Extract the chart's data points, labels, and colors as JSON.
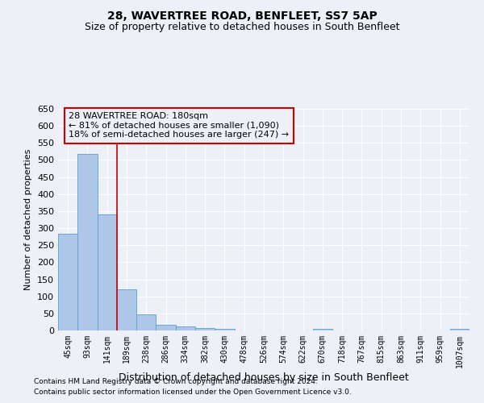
{
  "title": "28, WAVERTREE ROAD, BENFLEET, SS7 5AP",
  "subtitle": "Size of property relative to detached houses in South Benfleet",
  "xlabel": "Distribution of detached houses by size in South Benfleet",
  "ylabel": "Number of detached properties",
  "footnote1": "Contains HM Land Registry data © Crown copyright and database right 2024.",
  "footnote2": "Contains public sector information licensed under the Open Government Licence v3.0.",
  "categories": [
    "45sqm",
    "93sqm",
    "141sqm",
    "189sqm",
    "238sqm",
    "286sqm",
    "334sqm",
    "382sqm",
    "430sqm",
    "478sqm",
    "526sqm",
    "574sqm",
    "622sqm",
    "670sqm",
    "718sqm",
    "767sqm",
    "815sqm",
    "863sqm",
    "911sqm",
    "959sqm",
    "1007sqm"
  ],
  "values": [
    283,
    517,
    340,
    120,
    47,
    16,
    11,
    8,
    5,
    0,
    0,
    0,
    0,
    5,
    0,
    0,
    0,
    0,
    0,
    0,
    5
  ],
  "bar_color": "#aec6e8",
  "bar_edge_color": "#5a9fd4",
  "property_line_color": "#cc0000",
  "annotation_line1": "28 WAVERTREE ROAD: 180sqm",
  "annotation_line2": "← 81% of detached houses are smaller (1,090)",
  "annotation_line3": "18% of semi-detached houses are larger (247) →",
  "annotation_box_color": "#cc0000",
  "ylim": [
    0,
    650
  ],
  "yticks": [
    0,
    50,
    100,
    150,
    200,
    250,
    300,
    350,
    400,
    450,
    500,
    550,
    600,
    650
  ],
  "bg_color": "#edf1f7",
  "grid_color": "#ffffff",
  "title_fontsize": 10,
  "subtitle_fontsize": 9,
  "bar_fontsize": 7,
  "ylabel_fontsize": 8,
  "xlabel_fontsize": 9
}
